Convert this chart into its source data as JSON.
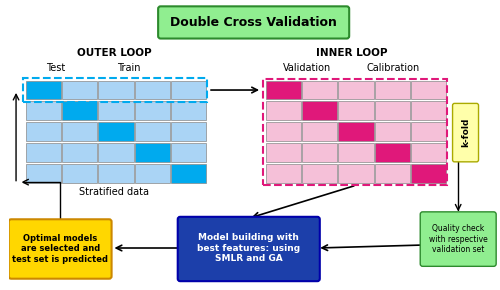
{
  "title": "Double Cross Validation",
  "title_bg": "#90EE90",
  "title_border": "#2d8a2d",
  "outer_loop_label": "OUTER LOOP",
  "inner_loop_label": "INNER LOOP",
  "test_label": "Test",
  "train_label": "Train",
  "validation_label": "Validation",
  "calibration_label": "Calibration",
  "stratified_label": "Stratified data",
  "kfold_label": "k-fold",
  "kfold_bg": "#ffffaa",
  "kfold_border": "#aaaa00",
  "quality_label": "Quality check\nwith respective\nvalidation set",
  "quality_bg": "#90EE90",
  "quality_border": "#2d8a2d",
  "optimal_label": "Optimal models\nare selected and\ntest set is predicted",
  "optimal_bg": "#FFD700",
  "optimal_border": "#cc8800",
  "model_label": "Model building with\nbest features: using\nSMLR and GA",
  "model_bg": "#1c3faa",
  "model_border": "#0000aa",
  "light_blue": "#aad4f5",
  "bright_blue": "#00aaee",
  "light_pink": "#f5c0d8",
  "bright_pink": "#e0187a",
  "outer_dashed_color": "#00aaee",
  "inner_dashed_color": "#e0187a",
  "n_rows": 5,
  "n_outer_cols": 5,
  "n_inner_cols": 5
}
